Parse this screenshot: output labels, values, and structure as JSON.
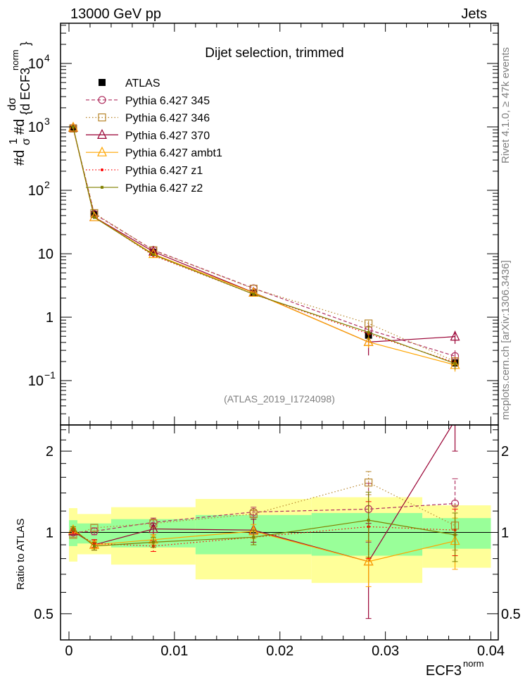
{
  "header": {
    "left": "13000 GeV pp",
    "right": "Jets"
  },
  "side": {
    "rivet": "Rivet 4.1.0, ≥ 47k events",
    "mcplots": "mcplots.cern.ch [arXiv:1306.3436]"
  },
  "chart_data": [
    {
      "type": "line",
      "title": "Dijet selection, trimmed",
      "annotation": "(ATLAS_2019_I1724098)",
      "ylabel_parts": {
        "d1": "#d",
        "one": "1",
        "sigma": "σ",
        "d2": "#d",
        "dsigma": "dσ",
        "den": "{d ECF3",
        "sup": "norm",
        "close": "}"
      },
      "yscale": "log",
      "ylim": [
        0.02,
        43000
      ],
      "yticks": [
        {
          "v": 10000,
          "base": "10",
          "exp": "4"
        },
        {
          "v": 1000,
          "base": "10",
          "exp": "3"
        },
        {
          "v": 100,
          "base": "10",
          "exp": "2"
        },
        {
          "v": 10,
          "base": "10",
          "exp": ""
        },
        {
          "v": 1,
          "base": "1",
          "exp": ""
        },
        {
          "v": 0.1,
          "base": "10",
          "exp": "−1"
        }
      ],
      "xlim": [
        -0.0008,
        0.0407
      ],
      "x": [
        0.0004,
        0.0024,
        0.008,
        0.0175,
        0.0284,
        0.0366
      ],
      "bin_edges": [
        0,
        0.0008,
        0.004,
        0.012,
        0.023,
        0.0335,
        0.04
      ],
      "legend_placement": "top-left",
      "data": {
        "name": "ATLAS",
        "values": [
          960,
          42,
          10.5,
          2.4,
          0.52,
          0.19
        ]
      },
      "series": [
        {
          "name": "Pythia 6.427 345",
          "color": "#b03060",
          "dash": "5,3",
          "marker": "circle",
          "ratio": [
            1.0,
            1.01,
            1.09,
            1.19,
            1.22,
            1.28
          ],
          "err": [
            0.02,
            0.03,
            0.04,
            0.05,
            0.3,
            0.3
          ]
        },
        {
          "name": "Pythia 6.427 346",
          "color": "#b8862b",
          "dash": "1.5,3",
          "marker": "square",
          "ratio": [
            0.98,
            1.04,
            1.08,
            1.17,
            1.53,
            1.06
          ],
          "err": [
            0.02,
            0.03,
            0.04,
            0.05,
            0.15,
            0.2
          ]
        },
        {
          "name": "Pythia 6.427 370",
          "color": "#990033",
          "dash": "",
          "marker": "triangle",
          "ratio": [
            1.01,
            0.9,
            1.03,
            1.02,
            0.78,
            2.6
          ],
          "err": [
            0.02,
            0.04,
            0.05,
            0.1,
            0.3,
            0.6
          ]
        },
        {
          "name": "Pythia 6.427 ambt1",
          "color": "#ffa500",
          "dash": "",
          "marker": "triangle",
          "ratio": [
            1.02,
            0.9,
            0.94,
            1.01,
            0.78,
            0.93
          ],
          "err": [
            0.02,
            0.03,
            0.04,
            0.06,
            0.15,
            0.2
          ]
        },
        {
          "name": "Pythia 6.427 z1",
          "color": "#ff0000",
          "dash": "1.5,3",
          "marker": "dot",
          "ratio": [
            1.01,
            0.91,
            0.89,
            0.96,
            1.05,
            1.02
          ],
          "err": [
            0.02,
            0.03,
            0.04,
            0.06,
            0.25,
            0.2
          ]
        },
        {
          "name": "Pythia 6.427 z2",
          "color": "#808000",
          "dash": "",
          "marker": "smallsquare",
          "ratio": [
            1.03,
            0.89,
            0.92,
            0.96,
            1.11,
            0.98
          ],
          "err": [
            0.02,
            0.03,
            0.04,
            0.06,
            0.3,
            0.2
          ]
        }
      ]
    },
    {
      "type": "line",
      "ylabel": "Ratio to ATLAS",
      "yscale": "log",
      "ylim": [
        0.4,
        2.5
      ],
      "yticks": [
        {
          "v": 2,
          "label": "2"
        },
        {
          "v": 1,
          "label": "1"
        },
        {
          "v": 0.5,
          "label": "0.5"
        }
      ],
      "xlabel": "ECF3",
      "xlabel_sup": "norm",
      "xticks": [
        {
          "v": 0,
          "label": "0"
        },
        {
          "v": 0.01,
          "label": "0.01"
        },
        {
          "v": 0.02,
          "label": "0.02"
        },
        {
          "v": 0.03,
          "label": "0.03"
        },
        {
          "v": 0.04,
          "label": "0.04"
        }
      ],
      "band_total": [
        [
          0.78,
          1.23
        ],
        [
          0.83,
          1.17
        ],
        [
          0.76,
          1.24
        ],
        [
          0.67,
          1.33
        ],
        [
          0.65,
          1.35
        ],
        [
          0.74,
          1.26
        ]
      ],
      "band_stat": [
        [
          0.89,
          1.11
        ],
        [
          0.91,
          1.08
        ],
        [
          0.88,
          1.12
        ],
        [
          0.83,
          1.16
        ],
        [
          0.82,
          1.18
        ],
        [
          0.87,
          1.13
        ]
      ],
      "band_colors": {
        "total": "#ffff99",
        "stat": "#99ff99"
      }
    }
  ]
}
